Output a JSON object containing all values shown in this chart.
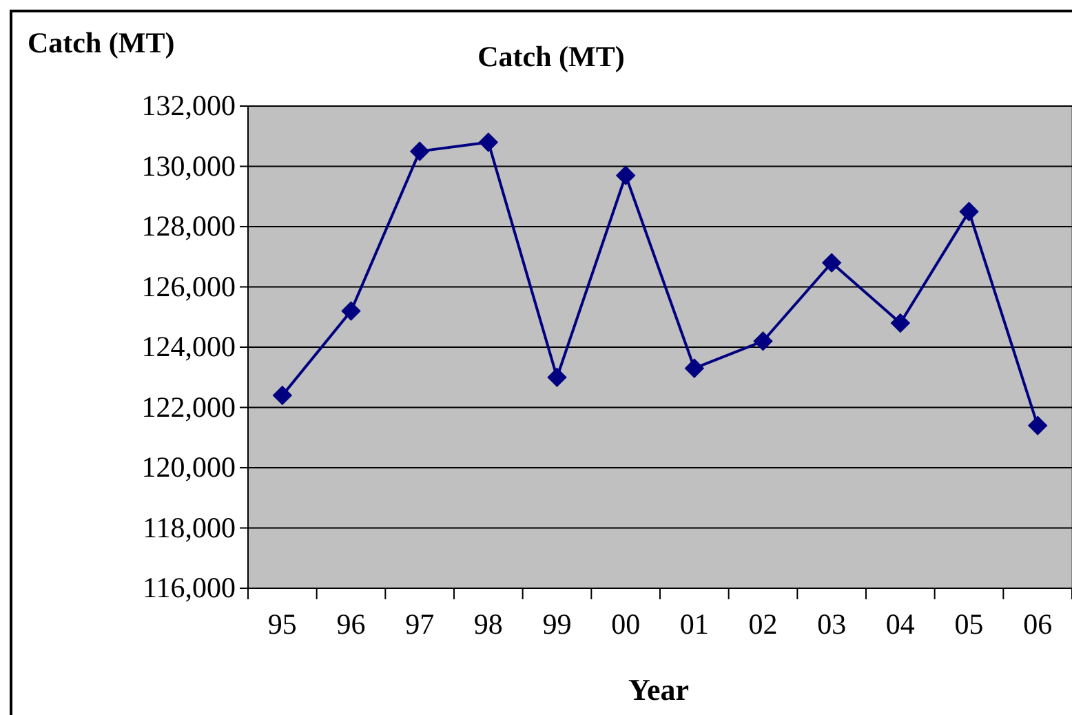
{
  "chart_data": {
    "type": "line",
    "title": "Catch (MT)",
    "ylabel": "Catch (MT)",
    "xlabel": "Year",
    "categories": [
      "95",
      "96",
      "97",
      "98",
      "99",
      "00",
      "01",
      "02",
      "03",
      "04",
      "05",
      "06"
    ],
    "series": [
      {
        "color": "#000080",
        "values": [
          122400,
          125200,
          130500,
          130800,
          123000,
          129700,
          123300,
          124200,
          126800,
          124800,
          128500,
          121400
        ]
      }
    ],
    "ylim": [
      116000,
      132000
    ],
    "yticks": [
      {
        "value": 116000,
        "label": "116,000"
      },
      {
        "value": 118000,
        "label": "118,000"
      },
      {
        "value": 120000,
        "label": "120,000"
      },
      {
        "value": 122000,
        "label": "122,000"
      },
      {
        "value": 124000,
        "label": "124,000"
      },
      {
        "value": 126000,
        "label": "126,000"
      },
      {
        "value": 128000,
        "label": "128,000"
      },
      {
        "value": 130000,
        "label": "130,000"
      },
      {
        "value": 132000,
        "label": "132,000"
      }
    ],
    "grid": "y",
    "marker": "diamond",
    "line_style": "solid"
  }
}
